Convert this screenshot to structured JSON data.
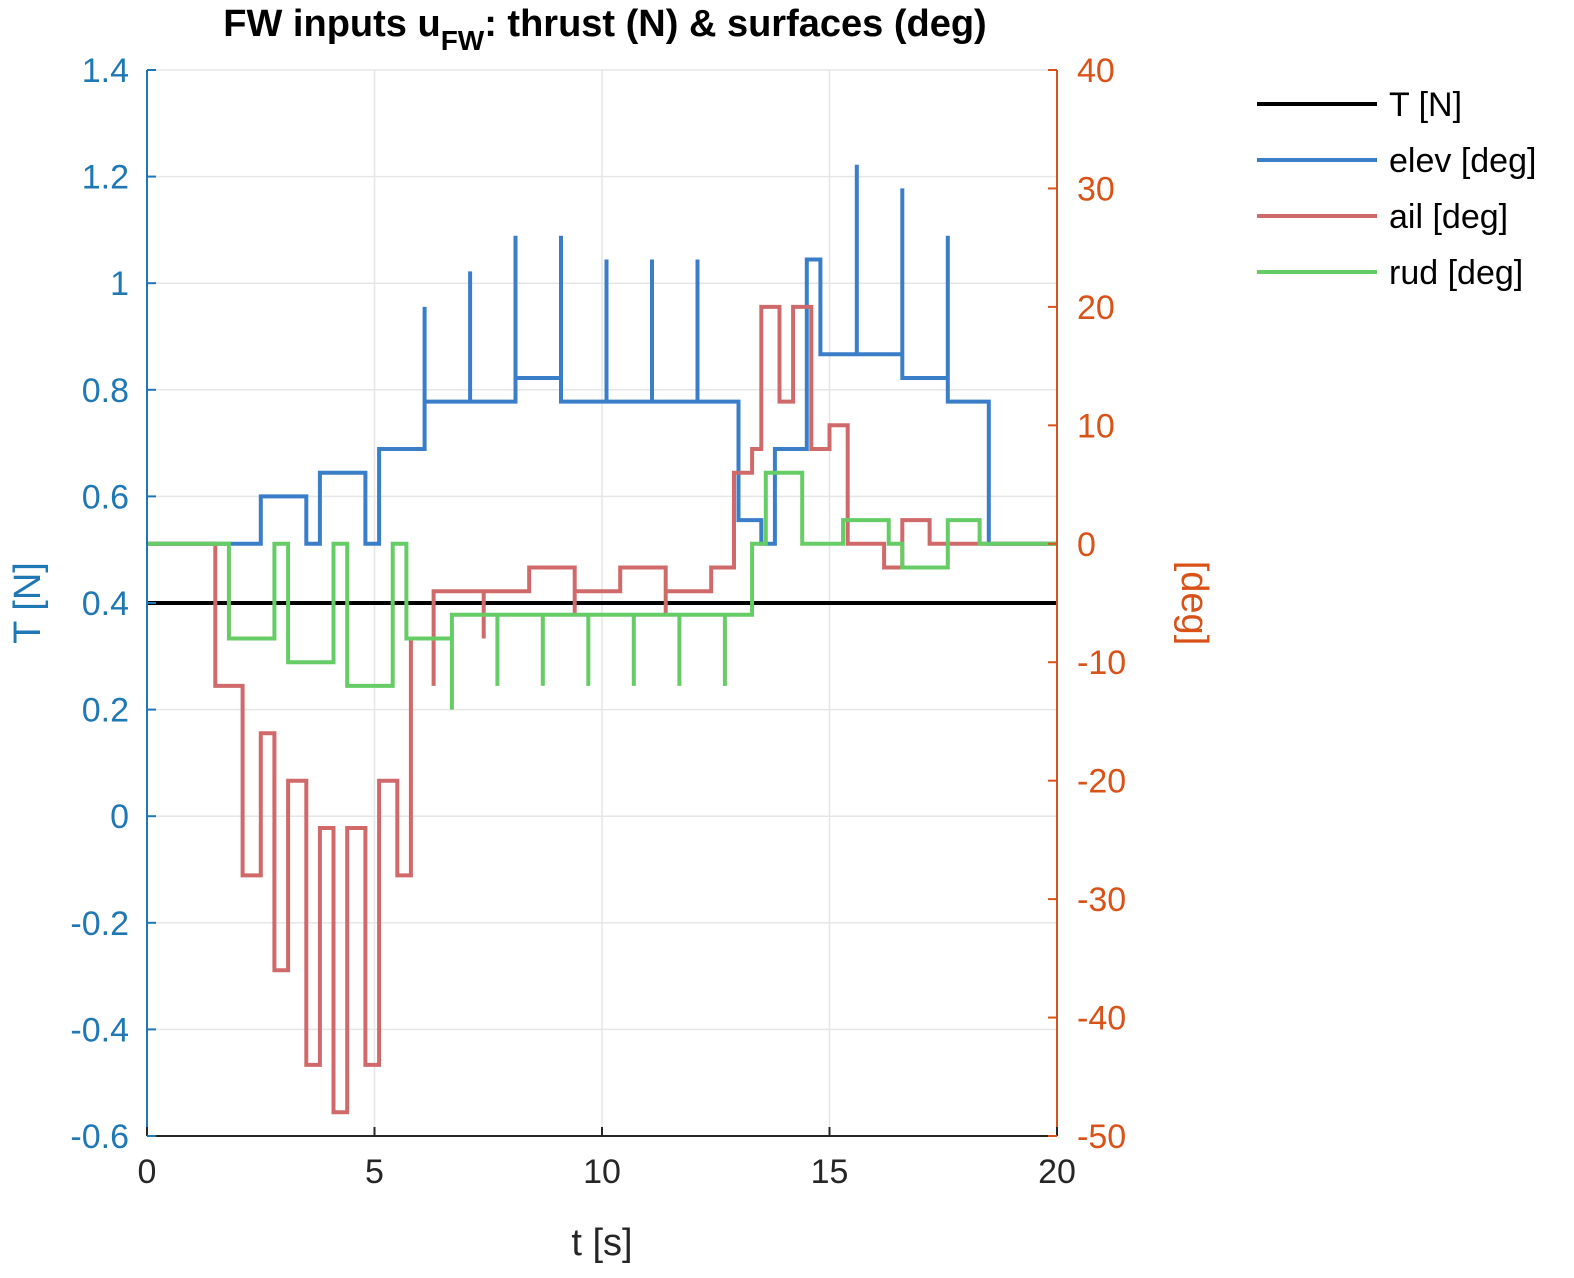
{
  "chart_data": {
    "type": "line",
    "title_main": "FW inputs u",
    "title_sub": "FW",
    "title_rest": ": thrust (N) & surfaces (deg)",
    "xlabel": "t [s]",
    "ylabel_left": "T [N]",
    "ylabel_right": "[deg]",
    "xlim": [
      0,
      20
    ],
    "ylim_left": [
      -0.6,
      1.4
    ],
    "ylim_right": [
      -50,
      40
    ],
    "xticks": [
      "0",
      "5",
      "10",
      "15",
      "20"
    ],
    "yticks_left": [
      "-0.6",
      "-0.4",
      "-0.2",
      "0",
      "0.2",
      "0.4",
      "0.6",
      "0.8",
      "1",
      "1.2",
      "1.4"
    ],
    "yticks_right": [
      "-50",
      "-40",
      "-30",
      "-20",
      "-10",
      "0",
      "10",
      "20",
      "30",
      "40"
    ],
    "grid": true,
    "legend_position": "outside-top-right",
    "colors": {
      "T": "#000000",
      "elev": "#3a7dc9",
      "ail": "#d06a6a",
      "rud": "#66cc66",
      "left_axis": "#1f77b4",
      "right_axis": "#d95319",
      "grid": "#e6e6e6"
    },
    "series": [
      {
        "name": "T [N]",
        "axis": "left",
        "points": [
          [
            0,
            0.4
          ],
          [
            20,
            0.4
          ]
        ]
      },
      {
        "name": "elev [deg]",
        "axis": "right",
        "points": [
          [
            0,
            0
          ],
          [
            1.9,
            0
          ],
          [
            2.5,
            0
          ],
          [
            2.5,
            4
          ],
          [
            3.5,
            4
          ],
          [
            3.5,
            0
          ],
          [
            3.8,
            0
          ],
          [
            3.8,
            6
          ],
          [
            4.8,
            6
          ],
          [
            4.8,
            0
          ],
          [
            5.1,
            0
          ],
          [
            5.1,
            8
          ],
          [
            6.1,
            8
          ],
          [
            6.1,
            20
          ],
          [
            6.1,
            12
          ],
          [
            7.1,
            12
          ],
          [
            7.1,
            23
          ],
          [
            7.1,
            12
          ],
          [
            8.1,
            12
          ],
          [
            8.1,
            26
          ],
          [
            8.1,
            14
          ],
          [
            9.1,
            14
          ],
          [
            9.1,
            26
          ],
          [
            9.1,
            12
          ],
          [
            10.1,
            12
          ],
          [
            10.1,
            24
          ],
          [
            10.1,
            12
          ],
          [
            11.1,
            12
          ],
          [
            11.1,
            24
          ],
          [
            11.1,
            12
          ],
          [
            12.1,
            12
          ],
          [
            12.1,
            24
          ],
          [
            12.1,
            12
          ],
          [
            13.0,
            12
          ],
          [
            13.0,
            2
          ],
          [
            13.5,
            2
          ],
          [
            13.5,
            0
          ],
          [
            13.8,
            0
          ],
          [
            13.8,
            8
          ],
          [
            14.5,
            8
          ],
          [
            14.5,
            24
          ],
          [
            14.8,
            24
          ],
          [
            14.8,
            16
          ],
          [
            15.6,
            16
          ],
          [
            15.6,
            32
          ],
          [
            15.6,
            16
          ],
          [
            16.6,
            16
          ],
          [
            16.6,
            30
          ],
          [
            16.6,
            14
          ],
          [
            17.6,
            14
          ],
          [
            17.6,
            26
          ],
          [
            17.6,
            12
          ],
          [
            18.5,
            12
          ],
          [
            18.5,
            0
          ],
          [
            20,
            0
          ]
        ]
      },
      {
        "name": "ail [deg]",
        "axis": "right",
        "points": [
          [
            0,
            0
          ],
          [
            1.5,
            0
          ],
          [
            1.5,
            -12
          ],
          [
            2.1,
            -12
          ],
          [
            2.1,
            -28
          ],
          [
            2.5,
            -28
          ],
          [
            2.5,
            -16
          ],
          [
            2.8,
            -16
          ],
          [
            2.8,
            -36
          ],
          [
            3.1,
            -36
          ],
          [
            3.1,
            -20
          ],
          [
            3.5,
            -20
          ],
          [
            3.5,
            -44
          ],
          [
            3.8,
            -44
          ],
          [
            3.8,
            -24
          ],
          [
            4.1,
            -24
          ],
          [
            4.1,
            -48
          ],
          [
            4.4,
            -48
          ],
          [
            4.4,
            -24
          ],
          [
            4.8,
            -24
          ],
          [
            4.8,
            -44
          ],
          [
            5.1,
            -44
          ],
          [
            5.1,
            -20
          ],
          [
            5.5,
            -20
          ],
          [
            5.5,
            -28
          ],
          [
            5.8,
            -28
          ],
          [
            5.8,
            -8
          ],
          [
            6.3,
            -8
          ],
          [
            6.3,
            -12
          ],
          [
            6.3,
            -4
          ],
          [
            7.4,
            -4
          ],
          [
            7.4,
            -8
          ],
          [
            7.4,
            -4
          ],
          [
            8.4,
            -4
          ],
          [
            8.4,
            -2
          ],
          [
            9.4,
            -2
          ],
          [
            9.4,
            -6
          ],
          [
            9.4,
            -4
          ],
          [
            10.4,
            -4
          ],
          [
            10.4,
            -2
          ],
          [
            11.4,
            -2
          ],
          [
            11.4,
            -6
          ],
          [
            11.4,
            -4
          ],
          [
            12.4,
            -4
          ],
          [
            12.4,
            -2
          ],
          [
            12.9,
            -2
          ],
          [
            12.9,
            6
          ],
          [
            13.3,
            6
          ],
          [
            13.3,
            8
          ],
          [
            13.5,
            8
          ],
          [
            13.5,
            20
          ],
          [
            13.9,
            20
          ],
          [
            13.9,
            12
          ],
          [
            14.2,
            12
          ],
          [
            14.2,
            20
          ],
          [
            14.6,
            20
          ],
          [
            14.6,
            8
          ],
          [
            15.0,
            8
          ],
          [
            15.0,
            10
          ],
          [
            15.4,
            10
          ],
          [
            15.4,
            0
          ],
          [
            15.8,
            0
          ],
          [
            15.8,
            0
          ],
          [
            16.2,
            0
          ],
          [
            16.2,
            -2
          ],
          [
            16.6,
            -2
          ],
          [
            16.6,
            2
          ],
          [
            17.2,
            2
          ],
          [
            17.2,
            0
          ],
          [
            17.8,
            0
          ],
          [
            17.8,
            0
          ],
          [
            18.2,
            0
          ],
          [
            20,
            0
          ]
        ]
      },
      {
        "name": "rud [deg]",
        "axis": "right",
        "points": [
          [
            0,
            0
          ],
          [
            1.8,
            0
          ],
          [
            1.8,
            -8
          ],
          [
            2.8,
            -8
          ],
          [
            2.8,
            0
          ],
          [
            3.1,
            0
          ],
          [
            3.1,
            -10
          ],
          [
            4.1,
            -10
          ],
          [
            4.1,
            0
          ],
          [
            4.4,
            0
          ],
          [
            4.4,
            -12
          ],
          [
            5.4,
            -12
          ],
          [
            5.4,
            0
          ],
          [
            5.7,
            0
          ],
          [
            5.7,
            -8
          ],
          [
            6.7,
            -8
          ],
          [
            6.7,
            -14
          ],
          [
            6.7,
            -6
          ],
          [
            7.7,
            -6
          ],
          [
            7.7,
            -12
          ],
          [
            7.7,
            -6
          ],
          [
            8.7,
            -6
          ],
          [
            8.7,
            -12
          ],
          [
            8.7,
            -6
          ],
          [
            9.7,
            -6
          ],
          [
            9.7,
            -12
          ],
          [
            9.7,
            -6
          ],
          [
            10.7,
            -6
          ],
          [
            10.7,
            -12
          ],
          [
            10.7,
            -6
          ],
          [
            11.7,
            -6
          ],
          [
            11.7,
            -12
          ],
          [
            11.7,
            -6
          ],
          [
            12.7,
            -6
          ],
          [
            12.7,
            -12
          ],
          [
            12.7,
            -6
          ],
          [
            13.3,
            -6
          ],
          [
            13.3,
            0
          ],
          [
            13.6,
            0
          ],
          [
            13.6,
            6
          ],
          [
            14.4,
            6
          ],
          [
            14.4,
            0
          ],
          [
            15.3,
            0
          ],
          [
            15.3,
            2
          ],
          [
            16.3,
            2
          ],
          [
            16.3,
            0
          ],
          [
            16.6,
            0
          ],
          [
            16.6,
            -2
          ],
          [
            17.6,
            -2
          ],
          [
            17.6,
            2
          ],
          [
            18.3,
            2
          ],
          [
            18.3,
            0
          ],
          [
            20,
            0
          ]
        ]
      }
    ]
  }
}
